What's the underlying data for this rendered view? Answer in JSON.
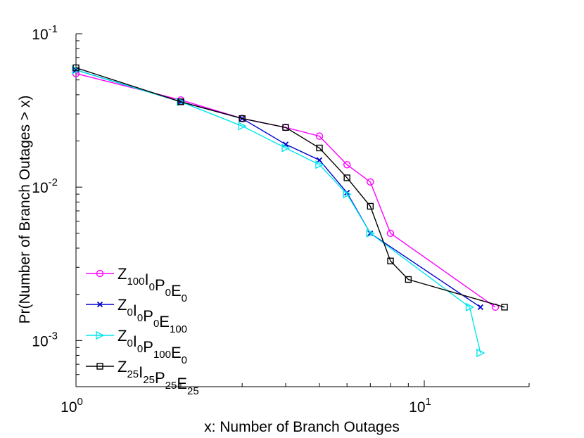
{
  "chart_data": {
    "type": "line",
    "xlabel": "x: Number of Branch Outages",
    "ylabel": "Pr(Number of Branch Outages > x)",
    "xscale": "log",
    "yscale": "log",
    "xlim": [
      1,
      20
    ],
    "ylim": [
      0.0005,
      0.1
    ],
    "grid": false,
    "legend_position": "bottom-left",
    "x_ticks": [
      {
        "value": 1,
        "base": "10",
        "exp": "0"
      },
      {
        "value": 10,
        "base": "10",
        "exp": "1"
      }
    ],
    "y_ticks": [
      {
        "value": 0.001,
        "base": "10",
        "exp": "-3"
      },
      {
        "value": 0.01,
        "base": "10",
        "exp": "-2"
      },
      {
        "value": 0.1,
        "base": "10",
        "exp": "-1"
      }
    ],
    "series": [
      {
        "name": "Z100I0P0E0",
        "legend_parts": [
          [
            "Z",
            "100"
          ],
          [
            "I",
            "0"
          ],
          [
            "P",
            "0"
          ],
          [
            "E",
            "0"
          ]
        ],
        "color": "#ff00ff",
        "marker": "circle",
        "x": [
          1,
          2,
          3,
          4,
          5,
          6,
          7,
          8,
          16
        ],
        "y": [
          0.055,
          0.037,
          0.028,
          0.0245,
          0.0215,
          0.014,
          0.0108,
          0.005,
          0.00165
        ]
      },
      {
        "name": "Z0I0P0E100",
        "legend_parts": [
          [
            "Z",
            "0"
          ],
          [
            "I",
            "0"
          ],
          [
            "P",
            "0"
          ],
          [
            "E",
            "100"
          ]
        ],
        "color": "#0000cc",
        "marker": "x",
        "x": [
          1,
          2,
          3,
          4,
          5,
          6,
          7,
          14.5
        ],
        "y": [
          0.058,
          0.036,
          0.028,
          0.019,
          0.015,
          0.0092,
          0.005,
          0.00165
        ]
      },
      {
        "name": "Z0I0P100E0",
        "legend_parts": [
          [
            "Z",
            "0"
          ],
          [
            "I",
            "0"
          ],
          [
            "P",
            "100"
          ],
          [
            "E",
            "0"
          ]
        ],
        "color": "#00e5ee",
        "marker": "triangle-right",
        "x": [
          1,
          2,
          3,
          4,
          5,
          6,
          7,
          13.5,
          14.5
        ],
        "y": [
          0.058,
          0.036,
          0.025,
          0.018,
          0.014,
          0.009,
          0.005,
          0.00165,
          0.00083
        ]
      },
      {
        "name": "Z25I25P25E25",
        "legend_parts": [
          [
            "Z",
            "25"
          ],
          [
            "I",
            "25"
          ],
          [
            "P",
            "25"
          ],
          [
            "E",
            "25"
          ]
        ],
        "color": "#000000",
        "marker": "square",
        "x": [
          1,
          2,
          3,
          4,
          5,
          6,
          7,
          8,
          9,
          17
        ],
        "y": [
          0.06,
          0.036,
          0.028,
          0.0245,
          0.018,
          0.0115,
          0.0075,
          0.0033,
          0.0025,
          0.00165
        ]
      }
    ]
  }
}
